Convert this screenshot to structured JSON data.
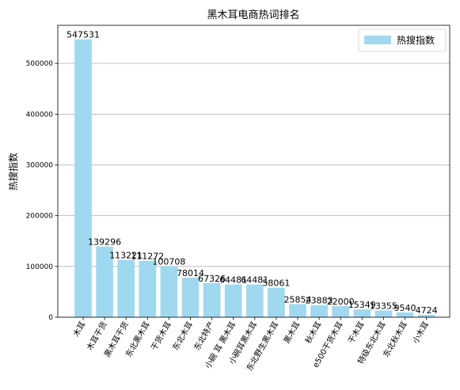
{
  "chart_data": {
    "type": "bar",
    "title": "黑木耳电商热词排名",
    "xlabel": "",
    "ylabel": "热搜指数",
    "ylim": [
      0,
      575000
    ],
    "yticks": [
      0,
      100000,
      200000,
      300000,
      400000,
      500000
    ],
    "grid": "y",
    "legend_position": "top-right",
    "bar_color": "#a0d8ef",
    "categories": [
      "木耳",
      "木耳干货",
      "黑木耳干货",
      "东北黑木耳",
      "干货木耳",
      "东北木耳",
      "东北特产",
      "小碗 耳 黑木耳",
      "小碗耳黑木耳",
      "东北野生黑木耳",
      "黑木耳",
      "秋木耳",
      "e500干货木耳",
      "干木耳",
      "特级东北木耳",
      "东北秋木耳",
      "小木耳"
    ],
    "series": [
      {
        "name": "热搜指数",
        "values": [
          547531,
          139296,
          113221,
          111272,
          100708,
          78014,
          67326,
          64481,
          64481,
          58061,
          25854,
          23883,
          22000,
          15349,
          13355,
          9540,
          4724
        ]
      }
    ]
  }
}
